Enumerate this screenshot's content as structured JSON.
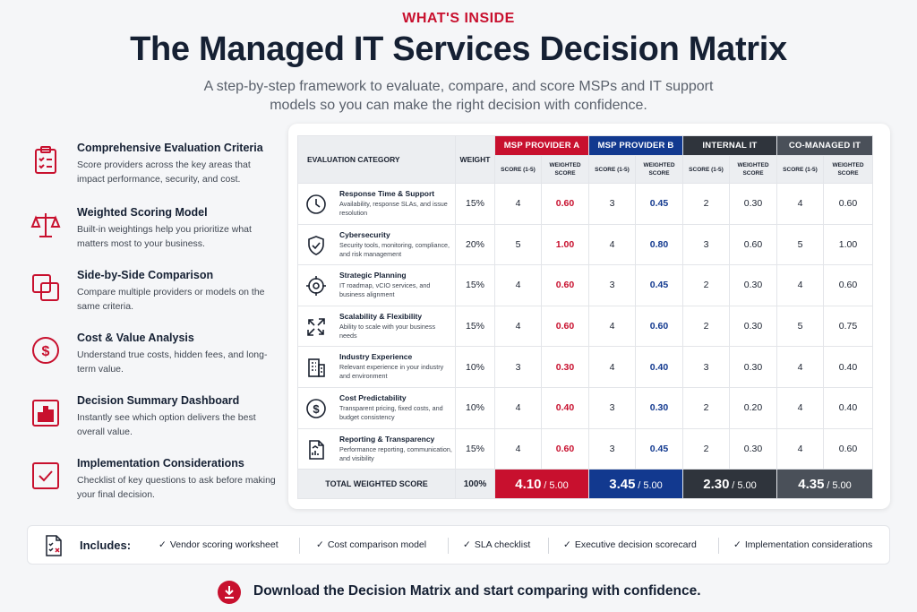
{
  "header": {
    "eyebrow": "WHAT'S INSIDE",
    "title": "The Managed IT Services Decision Matrix",
    "subtitle": "A step-by-step framework to evaluate, compare, and score MSPs and IT support models so you can make the right decision with confidence."
  },
  "features": [
    {
      "icon": "checklist-clipboard-icon",
      "title": "Comprehensive Evaluation Criteria",
      "desc": "Score providers across the key areas that impact performance, security, and cost."
    },
    {
      "icon": "scales-icon",
      "title": "Weighted Scoring Model",
      "desc": "Built-in weightings help you prioritize what matters most to your business."
    },
    {
      "icon": "overlapping-squares-icon",
      "title": "Side-by-Side Comparison",
      "desc": "Compare multiple providers or models on the same criteria."
    },
    {
      "icon": "dollar-circle-icon",
      "title": "Cost & Value Analysis",
      "desc": "Understand true costs, hidden fees, and long-term value."
    },
    {
      "icon": "bar-chart-icon",
      "title": "Decision Summary Dashboard",
      "desc": "Instantly see which option delivers the best overall value."
    },
    {
      "icon": "checkbox-icon",
      "title": "Implementation Considerations",
      "desc": "Checklist of key questions to ask before making your final decision."
    }
  ],
  "matrix": {
    "eval_header": "EVALUATION CATEGORY",
    "weight_header": "WEIGHT",
    "score_header": "SCORE (1-5)",
    "weighted_header": "WEIGHTED SCORE",
    "providers": [
      "MSP PROVIDER A",
      "MSP PROVIDER B",
      "INTERNAL IT",
      "CO-MANAGED IT"
    ],
    "rows": [
      {
        "icon": "clock-icon",
        "title": "Response Time & Support",
        "desc": "Availability, response SLAs, and issue resolution",
        "weight": "15%",
        "cells": [
          "4",
          "0.60",
          "3",
          "0.45",
          "2",
          "0.30",
          "4",
          "0.60"
        ]
      },
      {
        "icon": "shield-check-icon",
        "title": "Cybersecurity",
        "desc": "Security tools, monitoring, compliance, and risk management",
        "weight": "20%",
        "cells": [
          "5",
          "1.00",
          "4",
          "0.80",
          "3",
          "0.60",
          "5",
          "1.00"
        ]
      },
      {
        "icon": "target-icon",
        "title": "Strategic Planning",
        "desc": "IT roadmap, vCIO services, and business alignment",
        "weight": "15%",
        "cells": [
          "4",
          "0.60",
          "3",
          "0.45",
          "2",
          "0.30",
          "4",
          "0.60"
        ]
      },
      {
        "icon": "expand-arrows-icon",
        "title": "Scalability & Flexibility",
        "desc": "Ability to scale with your business needs",
        "weight": "15%",
        "cells": [
          "4",
          "0.60",
          "4",
          "0.60",
          "2",
          "0.30",
          "5",
          "0.75"
        ]
      },
      {
        "icon": "building-icon",
        "title": "Industry Experience",
        "desc": "Relevant experience in your industry and environment",
        "weight": "10%",
        "cells": [
          "3",
          "0.30",
          "4",
          "0.40",
          "3",
          "0.30",
          "4",
          "0.40"
        ]
      },
      {
        "icon": "dollar-circle-icon",
        "title": "Cost Predictability",
        "desc": "Transparent pricing, fixed costs, and budget consistency",
        "weight": "10%",
        "cells": [
          "4",
          "0.40",
          "3",
          "0.30",
          "2",
          "0.20",
          "4",
          "0.40"
        ]
      },
      {
        "icon": "report-icon",
        "title": "Reporting & Transparency",
        "desc": "Performance reporting, communication, and visibility",
        "weight": "15%",
        "cells": [
          "4",
          "0.60",
          "3",
          "0.45",
          "2",
          "0.30",
          "4",
          "0.60"
        ]
      }
    ],
    "total_label": "TOTAL WEIGHTED SCORE",
    "total_weight": "100%",
    "totals": [
      "4.10",
      "3.45",
      "2.30",
      "4.35"
    ],
    "total_out_of": "/ 5.00"
  },
  "includes": {
    "label": "Includes:",
    "items": [
      "Vendor scoring worksheet",
      "Cost comparison model",
      "SLA checklist",
      "Executive decision scorecard",
      "Implementation considerations"
    ]
  },
  "cta": {
    "text": "Download the Decision Matrix and start comparing with confidence."
  },
  "colors": {
    "accent_red": "#c8102e",
    "accent_blue": "#12398f",
    "dark": "#2f343c",
    "navy_text": "#152033"
  }
}
